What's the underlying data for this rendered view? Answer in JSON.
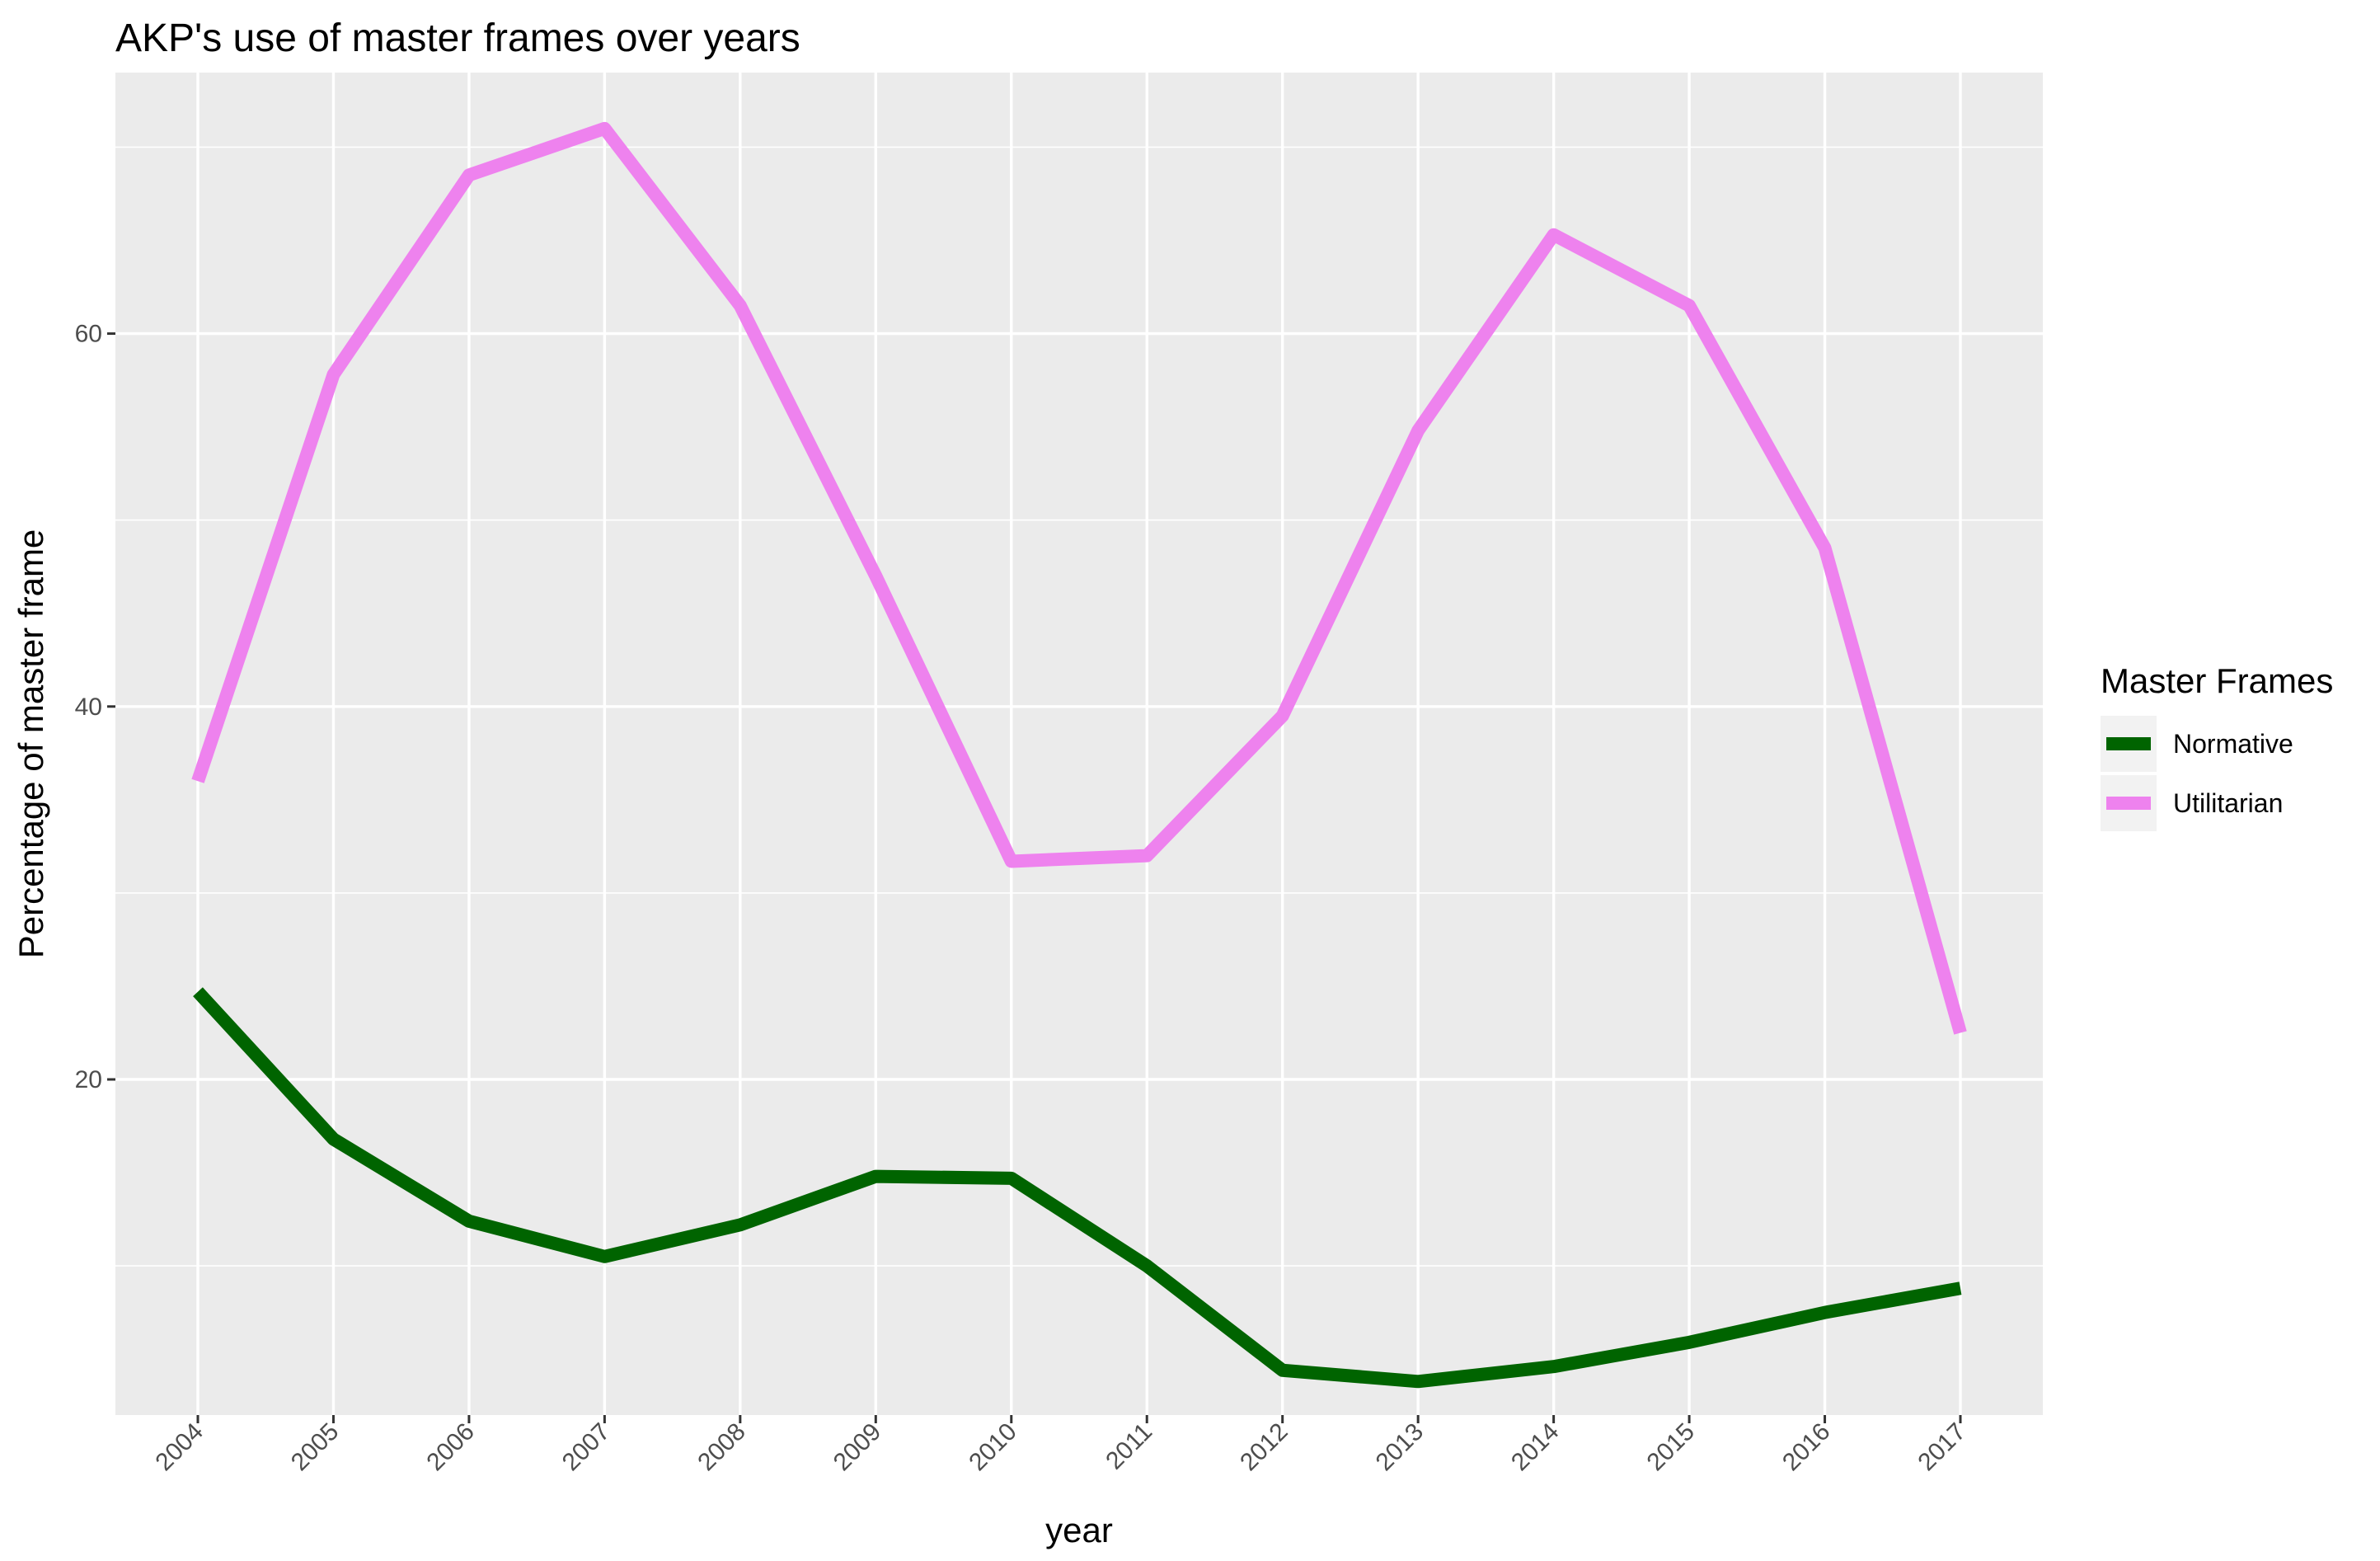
{
  "chart_data": {
    "type": "line",
    "title": "AKP's use of master frames over years",
    "xlabel": "year",
    "ylabel": "Percentage of master frame",
    "x": [
      "2004",
      "2005",
      "2006",
      "2007",
      "2008",
      "2009",
      "2010",
      "2011",
      "2012",
      "2013",
      "2014",
      "2015",
      "2016",
      "2017"
    ],
    "yticks": [
      20,
      40,
      60
    ],
    "ylim": [
      2,
      74
    ],
    "grid": true,
    "legend": {
      "title": "Master Frames",
      "position": "right"
    },
    "series": [
      {
        "name": "Normative",
        "color": "#006400",
        "values": [
          24.7,
          16.8,
          12.4,
          10.5,
          12.2,
          14.8,
          14.7,
          10.0,
          4.4,
          3.8,
          4.6,
          5.9,
          7.5,
          8.8
        ]
      },
      {
        "name": "Utilitarian",
        "color": "#EE82EE",
        "values": [
          36.0,
          57.8,
          68.5,
          71.0,
          61.5,
          47.0,
          31.7,
          32.0,
          39.5,
          54.8,
          65.3,
          61.5,
          48.5,
          22.5
        ]
      }
    ]
  }
}
